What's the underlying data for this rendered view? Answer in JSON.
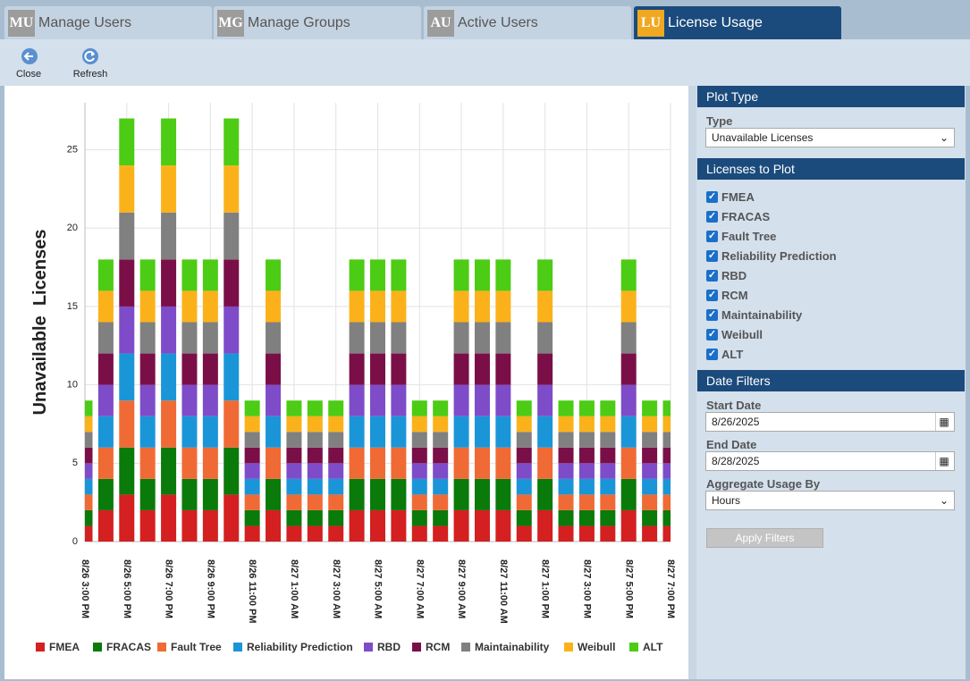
{
  "tabs": [
    {
      "icon": "MU",
      "label": "Manage Users"
    },
    {
      "icon": "MG",
      "label": "Manage Groups"
    },
    {
      "icon": "AU",
      "label": "Active Users"
    },
    {
      "icon": "LU",
      "label": "License Usage"
    }
  ],
  "toolbar": [
    "Close",
    "Refresh"
  ],
  "chart_data": {
    "type": "bar",
    "stacked": true,
    "y_label": "Unavailable  Licenses",
    "categories": [
      "8/26 3:00 PM",
      null,
      "8/26 5:00 PM",
      null,
      "8/26 7:00 PM",
      null,
      "8/26 9:00 PM",
      null,
      "8/26 11:00 PM",
      null,
      "8/27 1:00 AM",
      null,
      "8/27 3:00 AM",
      null,
      "8/27 5:00 AM",
      null,
      "8/27 7:00 AM",
      null,
      "8/27 9:00 AM",
      null,
      "8/27 11:00 AM",
      null,
      "8/27 1:00 PM",
      null,
      "8/27 3:00 PM",
      null,
      "8/27 5:00 PM",
      null,
      "8/27 7:00 PM"
    ],
    "series": [
      {
        "name": "FMEA",
        "color": "#d42020",
        "values": [
          1,
          2,
          3,
          2,
          3,
          2,
          2,
          3,
          1,
          2,
          1,
          1,
          1,
          2,
          2,
          2,
          1,
          1,
          2,
          2,
          2,
          1,
          2,
          1,
          1,
          1,
          2,
          1,
          1
        ]
      },
      {
        "name": "FRACAS",
        "color": "#0a7a0a",
        "values": [
          1,
          2,
          3,
          2,
          3,
          2,
          2,
          3,
          1,
          2,
          1,
          1,
          1,
          2,
          2,
          2,
          1,
          1,
          2,
          2,
          2,
          1,
          2,
          1,
          1,
          1,
          2,
          1,
          1
        ]
      },
      {
        "name": "Fault Tree",
        "color": "#f06a35",
        "values": [
          1,
          2,
          3,
          2,
          3,
          2,
          2,
          3,
          1,
          2,
          1,
          1,
          1,
          2,
          2,
          2,
          1,
          1,
          2,
          2,
          2,
          1,
          2,
          1,
          1,
          1,
          2,
          1,
          1
        ]
      },
      {
        "name": "Reliability Prediction",
        "color": "#1a96d8",
        "values": [
          1,
          2,
          3,
          2,
          3,
          2,
          2,
          3,
          1,
          2,
          1,
          1,
          1,
          2,
          2,
          2,
          1,
          1,
          2,
          2,
          2,
          1,
          2,
          1,
          1,
          1,
          2,
          1,
          1
        ]
      },
      {
        "name": "RBD",
        "color": "#7e4cc9",
        "values": [
          1,
          2,
          3,
          2,
          3,
          2,
          2,
          3,
          1,
          2,
          1,
          1,
          1,
          2,
          2,
          2,
          1,
          1,
          2,
          2,
          2,
          1,
          2,
          1,
          1,
          1,
          2,
          1,
          1
        ]
      },
      {
        "name": "RCM",
        "color": "#7a0f48",
        "values": [
          1,
          2,
          3,
          2,
          3,
          2,
          2,
          3,
          1,
          2,
          1,
          1,
          1,
          2,
          2,
          2,
          1,
          1,
          2,
          2,
          2,
          1,
          2,
          1,
          1,
          1,
          2,
          1,
          1
        ]
      },
      {
        "name": "Maintainability",
        "color": "#808080",
        "values": [
          1,
          2,
          3,
          2,
          3,
          2,
          2,
          3,
          1,
          2,
          1,
          1,
          1,
          2,
          2,
          2,
          1,
          1,
          2,
          2,
          2,
          1,
          2,
          1,
          1,
          1,
          2,
          1,
          1
        ]
      },
      {
        "name": "Weibull",
        "color": "#fbb21a",
        "values": [
          1,
          2,
          3,
          2,
          3,
          2,
          2,
          3,
          1,
          2,
          1,
          1,
          1,
          2,
          2,
          2,
          1,
          1,
          2,
          2,
          2,
          1,
          2,
          1,
          1,
          1,
          2,
          1,
          1
        ]
      },
      {
        "name": "ALT",
        "color": "#4ccc14",
        "values": [
          1,
          2,
          3,
          2,
          3,
          2,
          2,
          3,
          1,
          2,
          1,
          1,
          1,
          2,
          2,
          2,
          1,
          1,
          2,
          2,
          2,
          1,
          2,
          1,
          1,
          1,
          2,
          1,
          1
        ]
      }
    ],
    "ylim": [
      0,
      28
    ],
    "yticks": [
      0,
      5,
      10,
      15,
      20,
      25
    ],
    "grid": true,
    "legend": "bottom"
  },
  "panel": {
    "plot_type": {
      "title": "Plot Type",
      "type_label": "Type",
      "type_value": "Unavailable Licenses"
    },
    "licenses": {
      "title": "Licenses to Plot",
      "items": [
        "FMEA",
        "FRACAS",
        "Fault Tree",
        "Reliability Prediction",
        "RBD",
        "RCM",
        "Maintainability",
        "Weibull",
        "ALT"
      ]
    },
    "date_filters": {
      "title": "Date Filters",
      "start_label": "Start Date",
      "start_value": "8/26/2025",
      "end_label": "End Date",
      "end_value": "8/28/2025",
      "aggregate_label": "Aggregate Usage By",
      "aggregate_value": "Hours",
      "apply": "Apply Filters"
    }
  }
}
